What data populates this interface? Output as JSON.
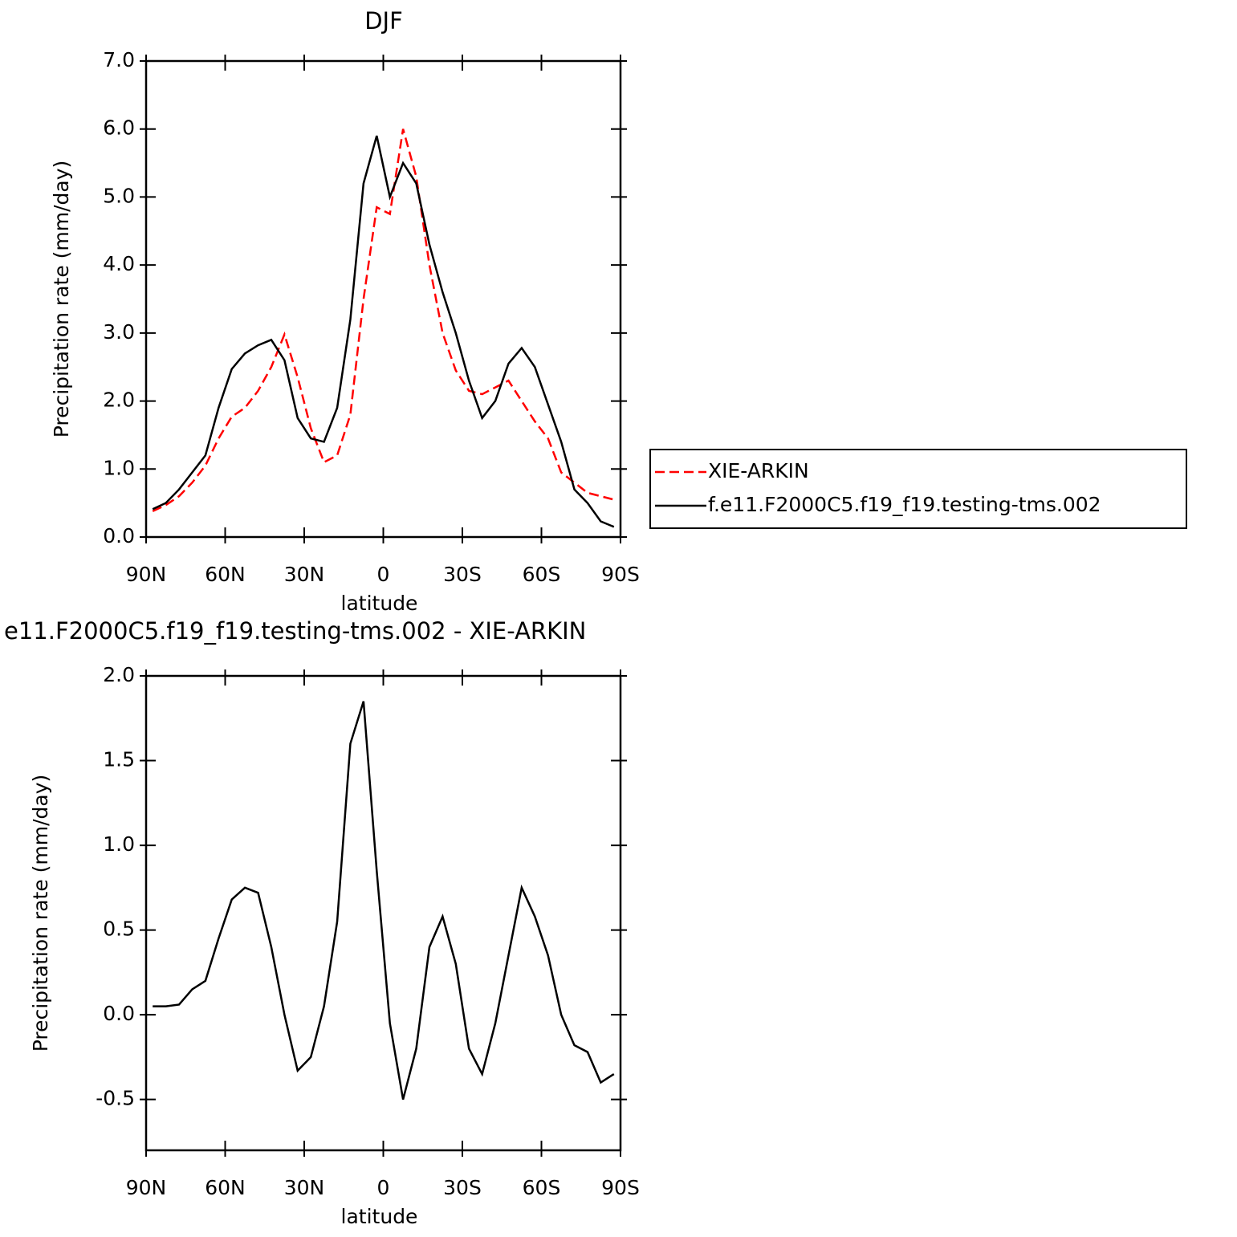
{
  "chart_data": [
    {
      "type": "line",
      "title": "DJF",
      "x_label": "latitude",
      "y_label": "Precipitation rate (mm/day)",
      "x": [
        87.5,
        82.5,
        77.5,
        72.5,
        67.5,
        62.5,
        57.5,
        52.5,
        47.5,
        42.5,
        37.5,
        32.5,
        27.5,
        22.5,
        17.5,
        12.5,
        7.5,
        2.5,
        -2.5,
        -7.5,
        -12.5,
        -17.5,
        -22.5,
        -27.5,
        -32.5,
        -37.5,
        -42.5,
        -47.5,
        -52.5,
        -57.5,
        -62.5,
        -67.5,
        -72.5,
        -77.5,
        -82.5,
        -87.5
      ],
      "xlim": [
        90,
        -90
      ],
      "xticks": [
        {
          "value": 90,
          "label": "90N"
        },
        {
          "value": 60,
          "label": "60N"
        },
        {
          "value": 30,
          "label": "30N"
        },
        0,
        {
          "value": -30,
          "label": "30S"
        },
        {
          "value": -60,
          "label": "60S"
        },
        {
          "value": -90,
          "label": "90S"
        }
      ],
      "ylim": [
        0,
        7
      ],
      "yticks": [
        {
          "value": 0,
          "label": "0.0"
        },
        {
          "value": 1,
          "label": "1.0"
        },
        {
          "value": 2,
          "label": "2.0"
        },
        {
          "value": 3,
          "label": "3.0"
        },
        {
          "value": 4,
          "label": "4.0"
        },
        {
          "value": 5,
          "label": "5.0"
        },
        {
          "value": 6,
          "label": "6.0"
        },
        {
          "value": 7,
          "label": "7.0"
        }
      ],
      "legend": "right",
      "series": [
        {
          "name": "XIE-ARKIN",
          "color": "#ff0000",
          "line_style": "dashed",
          "values": [
            0.38,
            0.47,
            0.6,
            0.8,
            1.05,
            1.45,
            1.77,
            1.9,
            2.15,
            2.5,
            2.98,
            2.35,
            1.6,
            1.1,
            1.2,
            1.8,
            3.5,
            4.85,
            4.75,
            6.0,
            5.3,
            4.0,
            3.0,
            2.45,
            2.15,
            2.1,
            2.2,
            2.3,
            2.0,
            1.7,
            1.45,
            0.95,
            0.8,
            0.65,
            0.6,
            0.55
          ]
        },
        {
          "name": "f.e11.F2000C5.f19_f19.testing-tms.002",
          "color": "#000000",
          "line_style": "solid",
          "values": [
            0.41,
            0.5,
            0.7,
            0.95,
            1.2,
            1.9,
            2.47,
            2.7,
            2.82,
            2.9,
            2.6,
            1.75,
            1.45,
            1.4,
            1.9,
            3.2,
            5.2,
            5.9,
            5.0,
            5.5,
            5.2,
            4.3,
            3.6,
            3.0,
            2.3,
            1.75,
            2.0,
            2.55,
            2.78,
            2.5,
            1.95,
            1.4,
            0.7,
            0.5,
            0.23,
            0.15
          ]
        }
      ]
    },
    {
      "type": "line",
      "title": "e11.F2000C5.f19_f19.testing-tms.002 - XIE-ARKIN",
      "x_label": "latitude",
      "y_label": "Precipitation rate (mm/day)",
      "x": [
        87.5,
        82.5,
        77.5,
        72.5,
        67.5,
        62.5,
        57.5,
        52.5,
        47.5,
        42.5,
        37.5,
        32.5,
        27.5,
        22.5,
        17.5,
        12.5,
        7.5,
        2.5,
        -2.5,
        -7.5,
        -12.5,
        -17.5,
        -22.5,
        -27.5,
        -32.5,
        -37.5,
        -42.5,
        -47.5,
        -52.5,
        -57.5,
        -62.5,
        -67.5,
        -72.5,
        -77.5,
        -82.5,
        -87.5
      ],
      "xlim": [
        90,
        -90
      ],
      "xticks": [
        {
          "value": 90,
          "label": "90N"
        },
        {
          "value": 60,
          "label": "60N"
        },
        {
          "value": 30,
          "label": "30N"
        },
        0,
        {
          "value": -30,
          "label": "30S"
        },
        {
          "value": -60,
          "label": "60S"
        },
        {
          "value": -90,
          "label": "90S"
        }
      ],
      "ylim": [
        -0.8,
        2.0
      ],
      "yticks": [
        -0.5,
        {
          "value": 0,
          "label": "0.0"
        },
        0.5,
        {
          "value": 1,
          "label": "1.0"
        },
        1.5,
        {
          "value": 2,
          "label": "2.0"
        }
      ],
      "series": [
        {
          "color": "#000000",
          "line_style": "solid",
          "values": [
            0.05,
            0.05,
            0.06,
            0.15,
            0.2,
            0.45,
            0.68,
            0.75,
            0.72,
            0.4,
            0.0,
            -0.33,
            -0.25,
            0.05,
            0.55,
            1.6,
            1.85,
            0.85,
            -0.05,
            -0.5,
            -0.2,
            0.4,
            0.58,
            0.3,
            -0.2,
            -0.35,
            -0.05,
            0.35,
            0.75,
            0.58,
            0.35,
            0.0,
            -0.18,
            -0.22,
            -0.4,
            -0.35
          ]
        }
      ]
    }
  ]
}
